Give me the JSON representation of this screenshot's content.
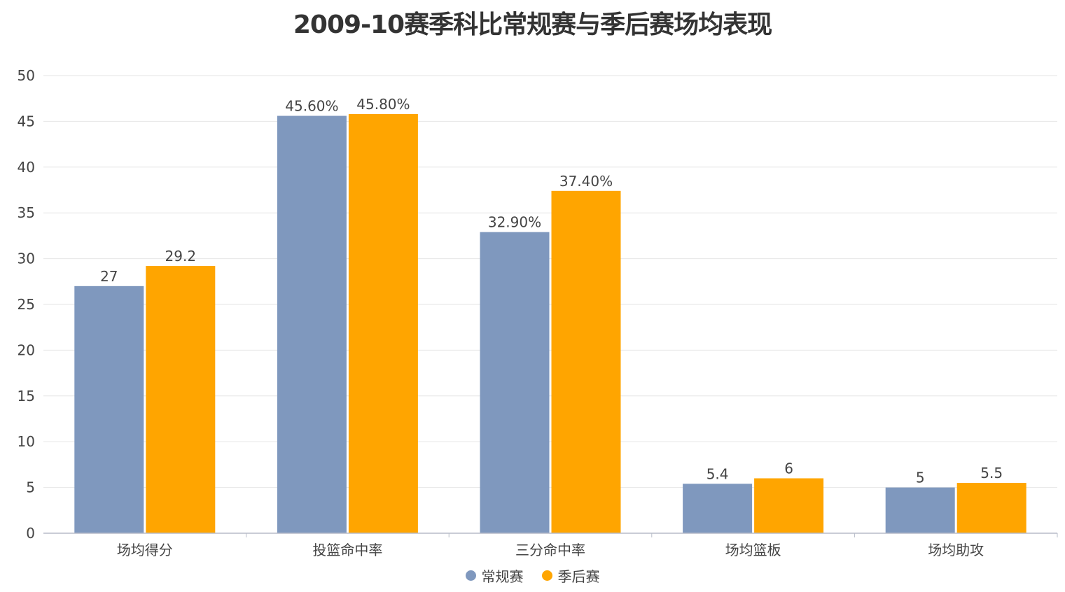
{
  "chart_data": {
    "type": "bar",
    "title": "2009-10赛季科比常规赛与季后赛场均表现",
    "categories": [
      "场均得分",
      "投篮命中率",
      "三分命中率",
      "场均篮板",
      "场均助攻"
    ],
    "series": [
      {
        "name": "常规赛",
        "color": "#7f98be",
        "values": [
          27,
          45.6,
          32.9,
          5.4,
          5
        ],
        "labels": [
          "27",
          "45.60%",
          "32.90%",
          "5.4",
          "5"
        ]
      },
      {
        "name": "季后赛",
        "color": "#ffa500",
        "values": [
          29.2,
          45.8,
          37.4,
          6,
          5.5
        ],
        "labels": [
          "29.2",
          "45.80%",
          "37.40%",
          "6",
          "5.5"
        ]
      }
    ],
    "yticks": [
      "0",
      "5",
      "10",
      "15",
      "20",
      "25",
      "30",
      "35",
      "40",
      "45",
      "50"
    ],
    "ylim": [
      0,
      50
    ],
    "grid": true,
    "legend_position": "bottom-center"
  }
}
